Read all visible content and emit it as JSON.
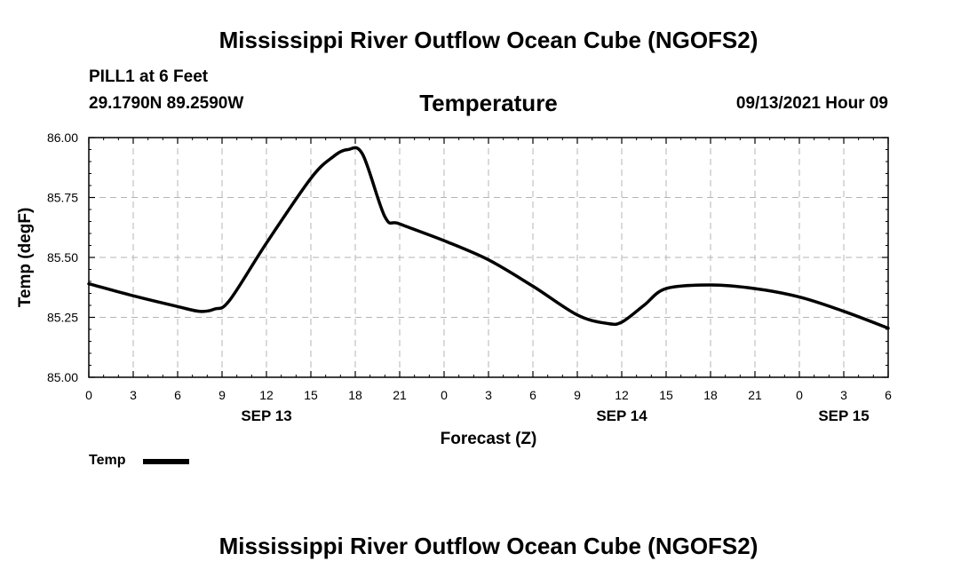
{
  "header": {
    "title": "Mississippi River Outflow Ocean Cube (NGOFS2)",
    "station": "PILL1 at 6 Feet",
    "coords": "29.1790N  89.2590W",
    "variable": "Temperature",
    "datetime": "09/13/2021 Hour 09"
  },
  "footer": {
    "title": "Mississippi River Outflow Ocean Cube (NGOFS2)"
  },
  "legend": {
    "label": "Temp",
    "color": "#000000"
  },
  "chart_data": {
    "type": "line",
    "title": "Temperature",
    "xlabel": "Forecast (Z)",
    "ylabel": "Temp (degF)",
    "xlim": [
      0,
      54
    ],
    "ylim": [
      85.0,
      86.0
    ],
    "x_ticks": [
      0,
      3,
      6,
      9,
      12,
      15,
      18,
      21,
      24,
      27,
      30,
      33,
      36,
      39,
      42,
      45,
      48,
      51,
      54
    ],
    "x_tick_labels": [
      "0",
      "3",
      "6",
      "9",
      "12",
      "15",
      "18",
      "21",
      "0",
      "3",
      "6",
      "9",
      "12",
      "15",
      "18",
      "21",
      "0",
      "3",
      "6"
    ],
    "y_ticks": [
      85.0,
      85.25,
      85.5,
      85.75,
      86.0
    ],
    "y_tick_labels": [
      "85.00",
      "85.25",
      "85.50",
      "85.75",
      "86.00"
    ],
    "day_labels": [
      {
        "x": 12,
        "label": "SEP 13"
      },
      {
        "x": 36,
        "label": "SEP 14"
      },
      {
        "x": 51,
        "label": "SEP 15"
      }
    ],
    "grid": true,
    "series": [
      {
        "name": "Temp",
        "x": [
          0,
          3,
          6,
          7.5,
          8.5,
          9.5,
          12,
          15,
          16.5,
          17.5,
          18.5,
          20,
          21,
          24,
          27,
          30,
          33,
          35,
          36,
          37.5,
          39,
          42,
          45,
          48,
          51,
          54
        ],
        "values": [
          85.39,
          85.34,
          85.295,
          85.275,
          85.285,
          85.32,
          85.56,
          85.83,
          85.92,
          85.95,
          85.93,
          85.67,
          85.64,
          85.57,
          85.49,
          85.38,
          85.26,
          85.225,
          85.23,
          85.3,
          85.37,
          85.385,
          85.37,
          85.335,
          85.275,
          85.205
        ]
      }
    ]
  }
}
